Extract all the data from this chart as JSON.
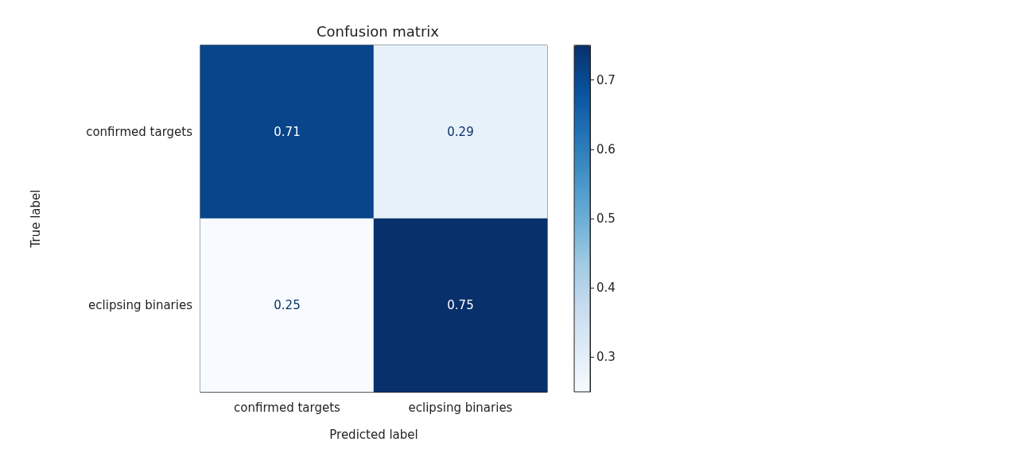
{
  "chart_data": {
    "type": "heatmap",
    "title": "Confusion matrix",
    "xlabel": "Predicted label",
    "ylabel": "True label",
    "categories": [
      "confirmed targets",
      "eclipsing binaries"
    ],
    "y_categories": [
      "confirmed targets",
      "eclipsing binaries"
    ],
    "cells": [
      [
        0.71,
        0.29
      ],
      [
        0.25,
        0.75
      ]
    ],
    "data_labels": true,
    "clim": [
      0.25,
      0.75
    ],
    "cticks": [
      0.3,
      0.4,
      0.5,
      0.6,
      0.7
    ]
  }
}
